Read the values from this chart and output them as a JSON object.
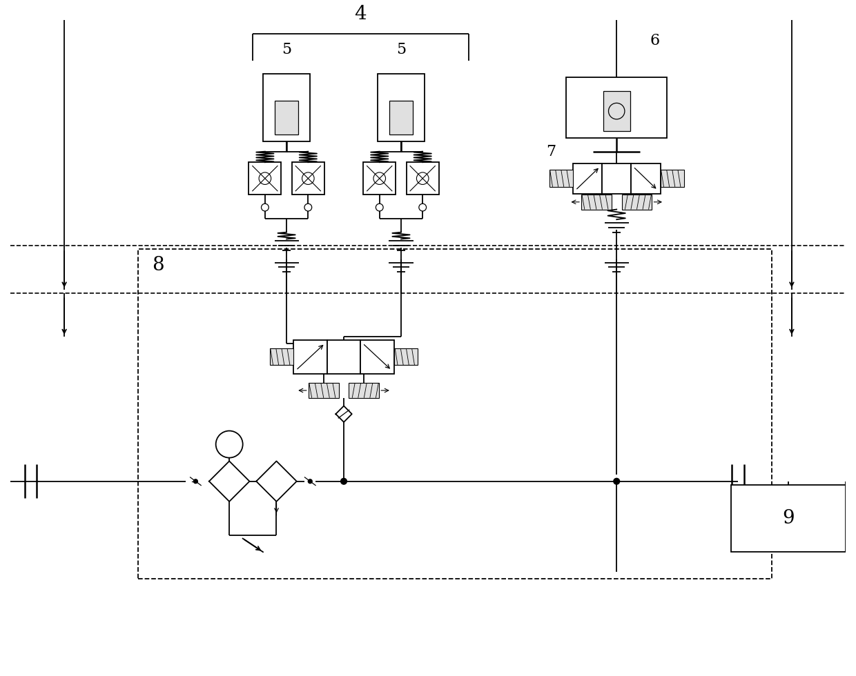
{
  "bg_color": "#ffffff",
  "line_color": "#000000",
  "label_4": "4",
  "label_5a": "5",
  "label_5b": "5",
  "label_6": "6",
  "label_7": "7",
  "label_8": "8",
  "label_9": "9",
  "figsize": [
    12.4,
    9.8
  ],
  "dpi": 100
}
